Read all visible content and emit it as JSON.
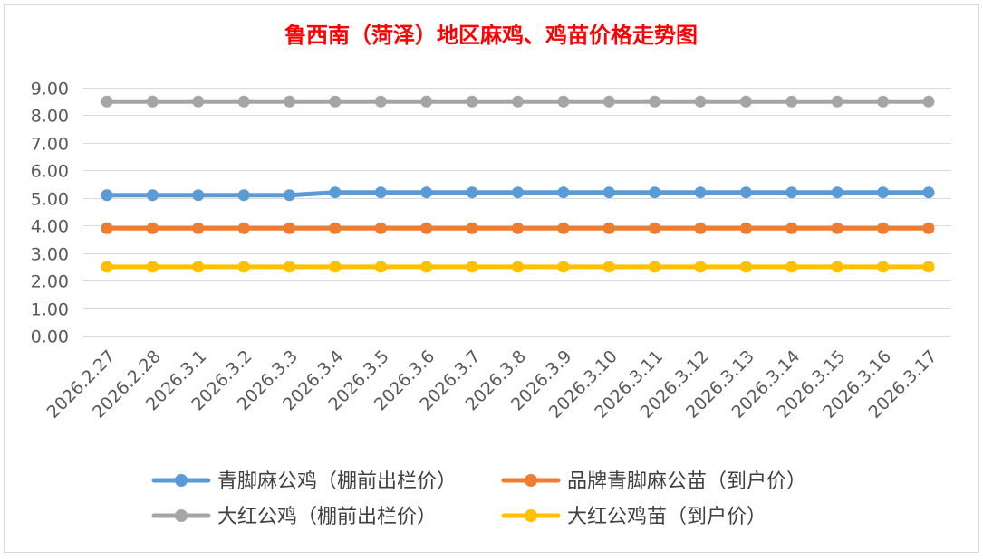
{
  "chart_data": {
    "type": "line",
    "title": "鲁西南（菏泽）地区麻鸡、鸡苗价格走势图",
    "xlabel": "",
    "ylabel": "",
    "categories": [
      "2026.2.27",
      "2026.2.28",
      "2026.3.1",
      "2026.3.2",
      "2026.3.3",
      "2026.3.4",
      "2026.3.5",
      "2026.3.6",
      "2026.3.7",
      "2026.3.8",
      "2026.3.9",
      "2026.3.10",
      "2026.3.11",
      "2026.3.12",
      "2026.3.13",
      "2026.3.14",
      "2026.3.15",
      "2026.3.16",
      "2026.3.17"
    ],
    "ylim": [
      0,
      9
    ],
    "yticks": [
      "0.00",
      "1.00",
      "2.00",
      "3.00",
      "4.00",
      "5.00",
      "6.00",
      "7.00",
      "8.00",
      "9.00"
    ],
    "grid": true,
    "legend_position": "bottom",
    "series": [
      {
        "name": "青脚麻公鸡（棚前出栏价）",
        "color": "#5B9BD5",
        "values": [
          5.1,
          5.1,
          5.1,
          5.1,
          5.1,
          5.2,
          5.2,
          5.2,
          5.2,
          5.2,
          5.2,
          5.2,
          5.2,
          5.2,
          5.2,
          5.2,
          5.2,
          5.2,
          5.2
        ]
      },
      {
        "name": "品牌青脚麻公苗（到户价）",
        "color": "#ED7D31",
        "values": [
          3.9,
          3.9,
          3.9,
          3.9,
          3.9,
          3.9,
          3.9,
          3.9,
          3.9,
          3.9,
          3.9,
          3.9,
          3.9,
          3.9,
          3.9,
          3.9,
          3.9,
          3.9,
          3.9
        ]
      },
      {
        "name": "大红公鸡（棚前出栏价）",
        "color": "#A5A5A5",
        "values": [
          8.5,
          8.5,
          8.5,
          8.5,
          8.5,
          8.5,
          8.5,
          8.5,
          8.5,
          8.5,
          8.5,
          8.5,
          8.5,
          8.5,
          8.5,
          8.5,
          8.5,
          8.5,
          8.5
        ]
      },
      {
        "name": "大红公鸡苗（到户价）",
        "color": "#FFC000",
        "values": [
          2.5,
          2.5,
          2.5,
          2.5,
          2.5,
          2.5,
          2.5,
          2.5,
          2.5,
          2.5,
          2.5,
          2.5,
          2.5,
          2.5,
          2.5,
          2.5,
          2.5,
          2.5,
          2.5
        ]
      }
    ],
    "title_color": "#FF0000"
  }
}
